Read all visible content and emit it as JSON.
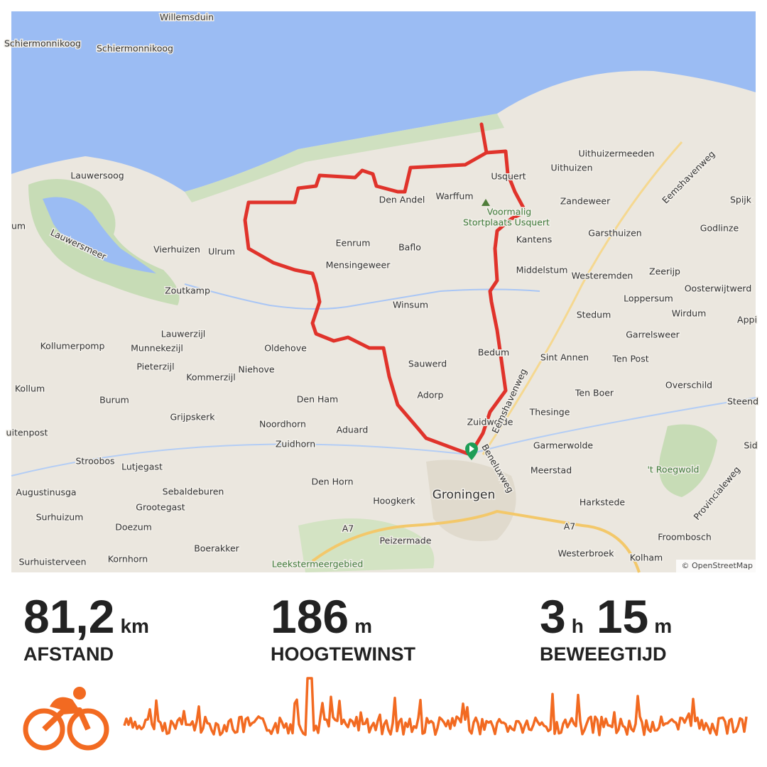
{
  "map": {
    "labels": [
      "Willemsduin",
      "Schiermonnikoog",
      "Schiermonnikoog",
      "Lauwersoog",
      "Lauwersmeer",
      "Vierhuizen",
      "Ulrum",
      "Zoutkamp",
      "Lauwerzijl",
      "Munnekezijl",
      "Kollumerpomp",
      "Kommerzijl",
      "Niehove",
      "Oldehove",
      "Pieterzijl",
      "Kollum",
      "Burum",
      "Grijpskerk",
      "Noordhorn",
      "Zuidhorn",
      "Aduard",
      "Den Ham",
      "Stroobos",
      "Lutjegast",
      "Augustinusga",
      "Sebaldeburen",
      "Grootegast",
      "Surhuizum",
      "Doezum",
      "Den Horn",
      "Hoogkerk",
      "Boerakker",
      "Surhuisterveen",
      "Kornhorn",
      "Peizermade",
      "Eenrum",
      "Baflo",
      "Mensingeweer",
      "Den Andel",
      "Warffum",
      "Usquert",
      "Uithuizen",
      "Uithuizermeeden",
      "Zandeweer",
      "Kantens",
      "Garsthuizen",
      "Godlinze",
      "Spijk",
      "Middelstum",
      "Westeremden",
      "Zeerijp",
      "Oosterwijtwerd",
      "Loppersum",
      "Stedum",
      "Wirdum",
      "Garrelsweer",
      "Winsum",
      "Sauwerd",
      "Adorp",
      "Bedum",
      "Sint Annen",
      "Ten Post",
      "Ten Boer",
      "Overschild",
      "Thesinge",
      "Zuidwolde",
      "Garmerwolde",
      "Meerstad",
      "Harkstede",
      "Froombosch",
      "Westerbroek",
      "Kolham",
      "Appi",
      "Steend",
      "Sid",
      "uitenpost",
      "um"
    ],
    "city": "Groningen",
    "green_labels": [
      "Voormalig",
      "Stortplaats Usquert",
      "'t Roegwold",
      "Leekstermeergebied"
    ],
    "road_labels": [
      "Eemshavenweg",
      "Eemshavenweg",
      "Beneluxweg",
      "Provincialeweg",
      "A7",
      "A7"
    ],
    "attribution": "© OpenStreetMap"
  },
  "stats": [
    {
      "value": "81,2",
      "unit": "km",
      "label": "AFSTAND"
    },
    {
      "value": 186,
      "unit": "m",
      "label": "HOOGTEWINST"
    },
    {
      "value": 3,
      "unit": "h",
      "value2": 15,
      "unit2": "m",
      "label": "BEWEEGTIJD"
    }
  ]
}
